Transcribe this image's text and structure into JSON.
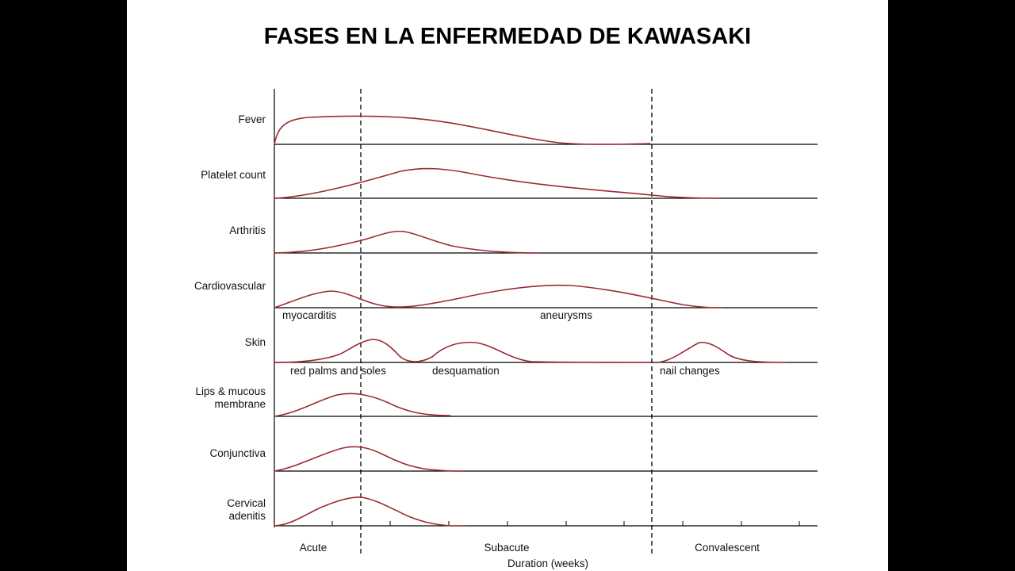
{
  "slide": {
    "title": "FASES EN LA ENFERMEDAD DE KAWASAKI"
  },
  "diagram": {
    "rows": [
      {
        "key": "fever",
        "lines": [
          "Fever"
        ]
      },
      {
        "key": "platelet",
        "lines": [
          "Platelet count"
        ]
      },
      {
        "key": "arthritis",
        "lines": [
          "Arthritis"
        ]
      },
      {
        "key": "cardio",
        "lines": [
          "Cardiovascular"
        ]
      },
      {
        "key": "skin",
        "lines": [
          "Skin"
        ]
      },
      {
        "key": "lips",
        "lines": [
          "Lips & mucous",
          "membrane"
        ]
      },
      {
        "key": "conj",
        "lines": [
          "Conjunctiva"
        ]
      },
      {
        "key": "adenitis",
        "lines": [
          "Cervical",
          "adenitis"
        ]
      }
    ],
    "annotations": {
      "myocarditis": "myocarditis",
      "aneurysms": "aneurysms",
      "red_palms": "red palms and soles",
      "desquamation": "desquamation",
      "nail_changes": "nail changes"
    },
    "phases": {
      "acute": "Acute",
      "subacute": "Subacute",
      "convalescent": "Convalescent"
    },
    "x_axis_label": "Duration (weeks)",
    "curve_color": "#9b2b32",
    "axis_color": "#000000"
  }
}
